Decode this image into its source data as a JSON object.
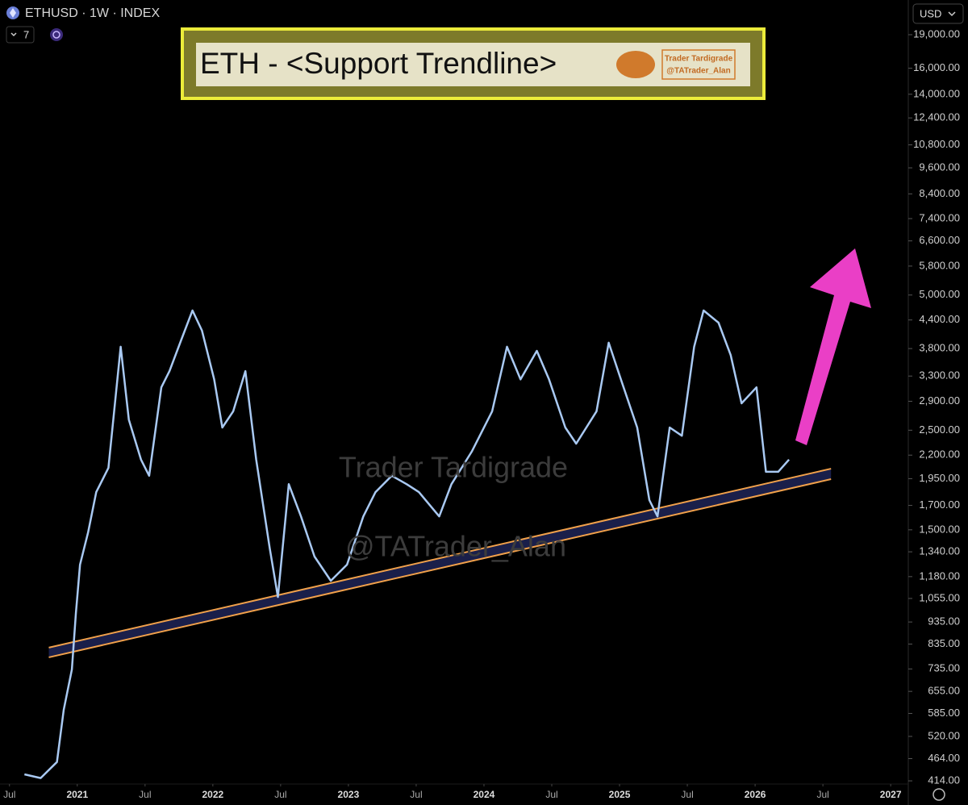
{
  "chart_data": {
    "type": "line",
    "title": "ETH - <Support Trendline>",
    "symbol_label": "ETHUSD · 1W · INDEX",
    "interval_count": 7,
    "currency": "USD",
    "logo_text": [
      "Trader Tardigrade",
      "@TATrader_Alan"
    ],
    "watermark": [
      "Trader Tardigrade",
      "@TATrader_Alan"
    ],
    "log_scale": true,
    "color": "#a9c9f2",
    "x": [
      2020.61,
      2020.73,
      2020.85,
      2020.9,
      2020.96,
      2020.99,
      2021.02,
      2021.08,
      2021.14,
      2021.23,
      2021.32,
      2021.38,
      2021.47,
      2021.53,
      2021.62,
      2021.68,
      2021.77,
      2021.85,
      2021.92,
      2022.01,
      2022.07,
      2022.15,
      2022.24,
      2022.32,
      2022.42,
      2022.48,
      2022.56,
      2022.65,
      2022.75,
      2022.87,
      2022.99,
      2023.11,
      2023.2,
      2023.32,
      2023.43,
      2023.52,
      2023.67,
      2023.76,
      2023.91,
      2024.06,
      2024.17,
      2024.27,
      2024.39,
      2024.48,
      2024.6,
      2024.68,
      2024.83,
      2024.92,
      2025.01,
      2025.13,
      2025.22,
      2025.28,
      2025.37,
      2025.46,
      2025.55,
      2025.62,
      2025.73,
      2025.82,
      2025.9,
      2026.01,
      2026.08,
      2026.17,
      2026.25
    ],
    "values": [
      428,
      420,
      456,
      596,
      733,
      979,
      1255,
      1480,
      1820,
      2060,
      3835,
      2640,
      2150,
      1979,
      3115,
      3385,
      3995,
      4620,
      4165,
      3245,
      2535,
      2755,
      3385,
      2150,
      1364,
      1063,
      1895,
      1607,
      1308,
      1155,
      1255,
      1607,
      1820,
      1979,
      1895,
      1820,
      1607,
      1895,
      2240,
      2755,
      3835,
      3245,
      3755,
      3245,
      2535,
      2334,
      2755,
      3915,
      3245,
      2535,
      1747,
      1607,
      2535,
      2430,
      3835,
      4620,
      4340,
      3675,
      2870,
      3115,
      2020,
      2020,
      2150
    ],
    "support_band": {
      "x": [
        2020.79,
        2026.56
      ],
      "upper": [
        820,
        2052
      ],
      "lower": [
        780,
        1945
      ]
    },
    "xlim": [
      2020.43,
      2027.13
    ],
    "xticks": [
      {
        "value": 2020.5,
        "label": "Jul"
      },
      2021,
      {
        "value": 2021.5,
        "label": "Jul"
      },
      2022,
      {
        "value": 2022.5,
        "label": "Jul"
      },
      2023,
      {
        "value": 2023.5,
        "label": "Jul"
      },
      2024,
      {
        "value": 2024.5,
        "label": "Jul"
      },
      2025,
      {
        "value": 2025.5,
        "label": "Jul"
      },
      2026,
      {
        "value": 2026.5,
        "label": "Jul"
      },
      2027
    ],
    "ylim": [
      386,
      22700
    ],
    "yticks": [
      {
        "value": 19000,
        "label": "19,000.00"
      },
      {
        "value": 16000,
        "label": "16,000.00"
      },
      {
        "value": 14000,
        "label": "14,000.00"
      },
      {
        "value": 12400,
        "label": "12,400.00"
      },
      {
        "value": 10800,
        "label": "10,800.00"
      },
      {
        "value": 9600,
        "label": "9,600.00"
      },
      {
        "value": 8400,
        "label": "8,400.00"
      },
      {
        "value": 7400,
        "label": "7,400.00"
      },
      {
        "value": 6600,
        "label": "6,600.00"
      },
      {
        "value": 5800,
        "label": "5,800.00"
      },
      {
        "value": 5000,
        "label": "5,000.00"
      },
      {
        "value": 4400,
        "label": "4,400.00"
      },
      {
        "value": 3800,
        "label": "3,800.00"
      },
      {
        "value": 3300,
        "label": "3,300.00"
      },
      {
        "value": 2900,
        "label": "2,900.00"
      },
      {
        "value": 2500,
        "label": "2,500.00"
      },
      {
        "value": 2200,
        "label": "2,200.00"
      },
      {
        "value": 1950,
        "label": "1,950.00"
      },
      {
        "value": 1700,
        "label": "1,700.00"
      },
      {
        "value": 1500,
        "label": "1,500.00"
      },
      {
        "value": 1340,
        "label": "1,340.00"
      },
      {
        "value": 1180,
        "label": "1,180.00"
      },
      {
        "value": 1055,
        "label": "1,055.00"
      },
      {
        "value": 935,
        "label": "935.00"
      },
      {
        "value": 835,
        "label": "835.00"
      },
      {
        "value": 735,
        "label": "735.00"
      },
      {
        "value": 655,
        "label": "655.00"
      },
      {
        "value": 585,
        "label": "585.00"
      },
      {
        "value": 520,
        "label": "520.00"
      },
      {
        "value": 464,
        "label": "464.00"
      },
      {
        "value": 414,
        "label": "414.00"
      }
    ]
  }
}
